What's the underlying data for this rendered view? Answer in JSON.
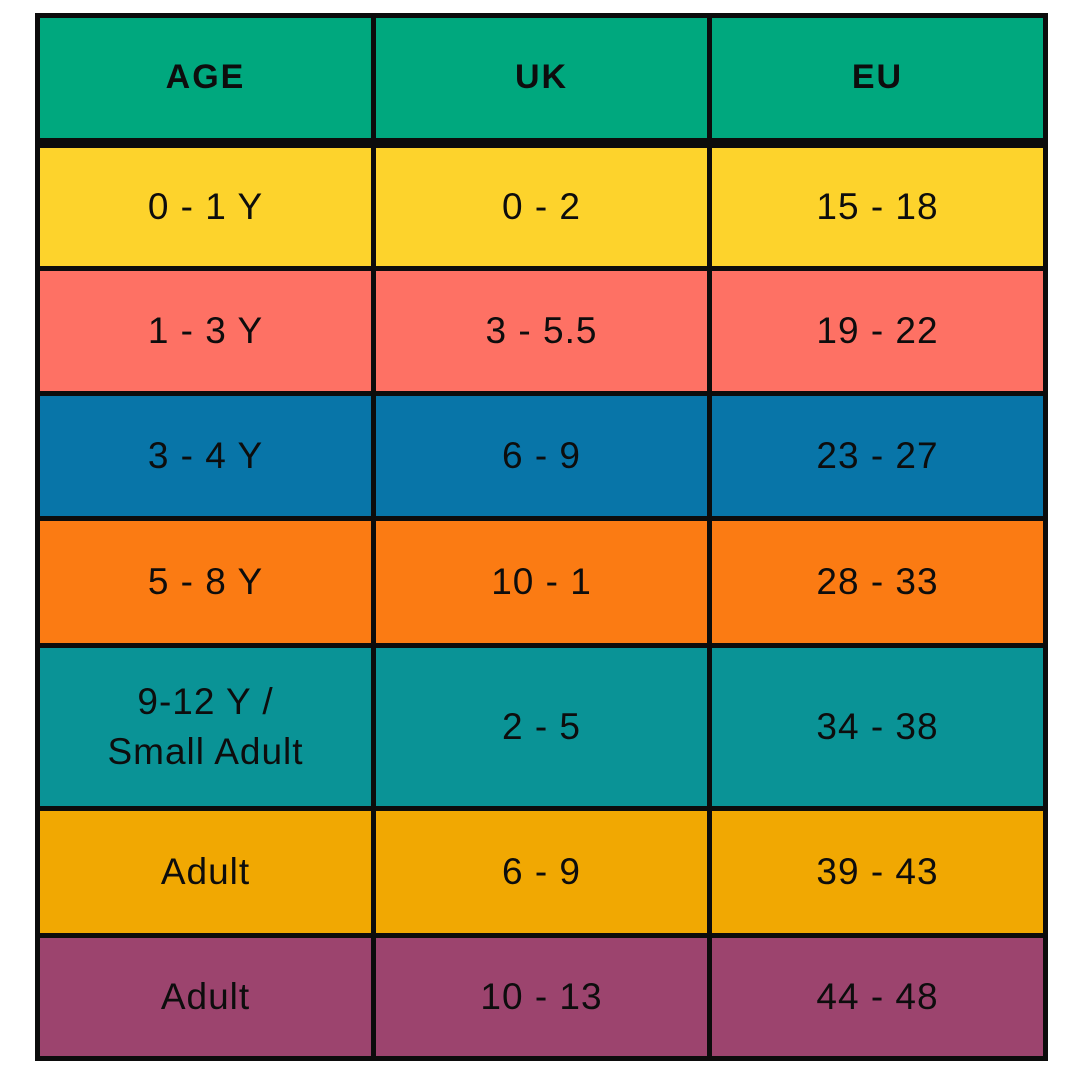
{
  "chart_data": {
    "type": "table",
    "title": "",
    "columns": [
      "AGE",
      "UK",
      "EU"
    ],
    "header_color": "#00A87E",
    "border_color": "#0C0C0C",
    "text_color": "#0D0D0D",
    "rows": [
      {
        "age": "0 - 1 Y",
        "uk": "0 - 2",
        "eu": "15 - 18",
        "color": "#FDD32C"
      },
      {
        "age": "1 - 3 Y",
        "uk": "3 - 5.5",
        "eu": "19 - 22",
        "color": "#FE7164"
      },
      {
        "age": "3 - 4 Y",
        "uk": "6 - 9",
        "eu": "23 - 27",
        "color": "#0875A8"
      },
      {
        "age": "5 - 8 Y",
        "uk": "10 - 1",
        "eu": "28 - 33",
        "color": "#FB7B13"
      },
      {
        "age": "9-12 Y /\nSmall Adult",
        "uk": "2 - 5",
        "eu": "34 - 38",
        "color": "#0A9396"
      },
      {
        "age": "Adult",
        "uk": "6 - 9",
        "eu": "39 - 43",
        "color": "#F1A802"
      },
      {
        "age": "Adult",
        "uk": "10 - 13",
        "eu": "44 - 48",
        "color": "#9C446E"
      }
    ]
  }
}
